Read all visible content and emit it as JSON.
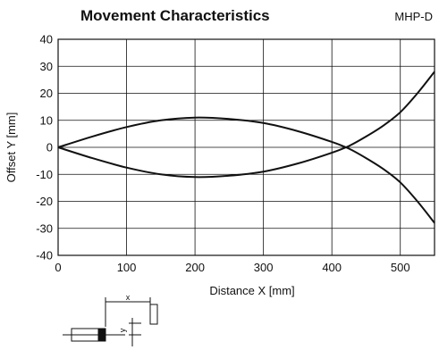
{
  "chart_data": {
    "type": "line",
    "title": "Movement Characteristics",
    "product_code": "MHP-D",
    "xlabel": "Distance X [mm]",
    "ylabel": "Offset Y [mm]",
    "xlim": [
      0,
      550
    ],
    "ylim": [
      -40,
      40
    ],
    "xticks": [
      0,
      100,
      200,
      300,
      400,
      500
    ],
    "yticks": [
      40,
      30,
      20,
      10,
      0,
      -10,
      -20,
      -30,
      -40
    ],
    "grid": true,
    "series": [
      {
        "x": [
          0,
          50,
          100,
          150,
          200,
          250,
          300,
          350,
          400,
          425,
          450,
          475,
          500,
          525,
          550
        ],
        "y": [
          0,
          4,
          7.5,
          10,
          11,
          10.5,
          9,
          6,
          2,
          -0.5,
          -4,
          -8,
          -13,
          -20,
          -28
        ]
      },
      {
        "x": [
          0,
          50,
          100,
          150,
          200,
          250,
          300,
          350,
          400,
          425,
          450,
          475,
          500,
          525,
          550
        ],
        "y": [
          0,
          -4,
          -7.5,
          -10,
          -11,
          -10.5,
          -9,
          -6,
          -2,
          0.5,
          4,
          8,
          13,
          20,
          28
        ]
      }
    ]
  },
  "diagram": {
    "x_label": "x",
    "y_label": "y"
  }
}
